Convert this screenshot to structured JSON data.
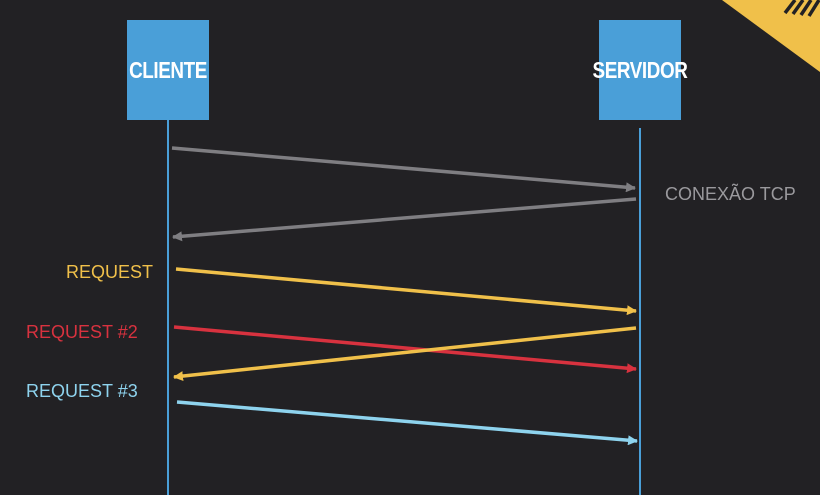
{
  "participants": {
    "client": "CLIENTE",
    "server": "SERVIDOR"
  },
  "labels": {
    "tcp": "CONEXÃO TCP",
    "request1": "REQUEST",
    "request2": "REQUEST #2",
    "request3": "REQUEST #3"
  },
  "colors": {
    "background": "#222124",
    "box": "#4a9fd8",
    "lifeline": "#4a9fd8",
    "tcp": "#7f7e82",
    "tcp_label": "#9a999d",
    "request1": "#f0c04a",
    "request2": "#d8323f",
    "request3": "#8ed3ee",
    "ribbon": "#f0c04a"
  },
  "messages": [
    {
      "id": "tcp-syn",
      "from": "client",
      "to": "server",
      "color": "tcp"
    },
    {
      "id": "tcp-ack",
      "from": "server",
      "to": "client",
      "color": "tcp"
    },
    {
      "id": "request-1",
      "from": "client",
      "to": "server",
      "color": "request1"
    },
    {
      "id": "request-2",
      "from": "client",
      "to": "server",
      "color": "request2"
    },
    {
      "id": "response-1",
      "from": "server",
      "to": "client",
      "color": "request1"
    },
    {
      "id": "request-3",
      "from": "client",
      "to": "server",
      "color": "request3"
    }
  ]
}
